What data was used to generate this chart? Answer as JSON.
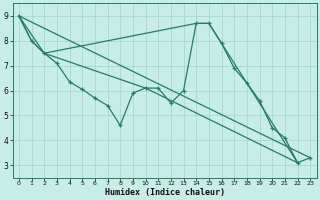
{
  "background_color": "#c8ece6",
  "grid_color": "#a8d8d0",
  "line_color": "#267b6a",
  "xlabel": "Humidex (Indice chaleur)",
  "ylim": [
    2.5,
    9.5
  ],
  "xlim": [
    -0.5,
    23.5
  ],
  "yticks": [
    3,
    4,
    5,
    6,
    7,
    8,
    9
  ],
  "xticks": [
    0,
    1,
    2,
    3,
    4,
    5,
    6,
    7,
    8,
    9,
    10,
    11,
    12,
    13,
    14,
    15,
    16,
    17,
    18,
    19,
    20,
    21,
    22,
    23
  ],
  "series_main": [
    [
      0,
      9.0
    ],
    [
      1,
      8.0
    ],
    [
      2,
      7.5
    ],
    [
      3,
      7.1
    ],
    [
      4,
      6.35
    ],
    [
      5,
      6.05
    ],
    [
      6,
      5.7
    ],
    [
      7,
      5.4
    ],
    [
      8,
      4.6
    ],
    [
      9,
      5.9
    ],
    [
      10,
      6.1
    ],
    [
      11,
      6.1
    ],
    [
      12,
      5.5
    ],
    [
      13,
      6.0
    ],
    [
      14,
      8.7
    ],
    [
      15,
      8.7
    ],
    [
      16,
      7.9
    ],
    [
      17,
      6.9
    ],
    [
      18,
      6.3
    ],
    [
      19,
      5.6
    ],
    [
      20,
      4.5
    ],
    [
      21,
      4.1
    ],
    [
      22,
      3.1
    ],
    [
      23,
      3.3
    ]
  ],
  "line_straight": [
    [
      0,
      9.0
    ],
    [
      23,
      3.3
    ]
  ],
  "line_bent1": [
    [
      0,
      9.0
    ],
    [
      1,
      8.0
    ],
    [
      2,
      7.5
    ],
    [
      10,
      6.1
    ],
    [
      22,
      3.1
    ]
  ],
  "line_bent2": [
    [
      0,
      9.0
    ],
    [
      2,
      7.5
    ],
    [
      14,
      8.7
    ],
    [
      15,
      8.7
    ],
    [
      22,
      3.1
    ]
  ]
}
